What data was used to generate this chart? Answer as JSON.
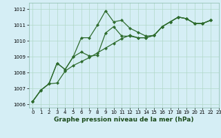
{
  "title": "Graphe pression niveau de la mer (hPa)",
  "bg_color": "#d5eef5",
  "grid_color": "#b0d8c8",
  "line_color": "#2d6b2d",
  "xlim": [
    -0.5,
    23
  ],
  "ylim": [
    1005.8,
    1012.4
  ],
  "yticks": [
    1006,
    1007,
    1008,
    1009,
    1010,
    1011,
    1012
  ],
  "xticks": [
    0,
    1,
    2,
    3,
    4,
    5,
    6,
    7,
    8,
    9,
    10,
    11,
    12,
    13,
    14,
    15,
    16,
    17,
    18,
    19,
    20,
    21,
    22,
    23
  ],
  "series": [
    {
      "x": [
        0,
        1,
        2,
        3,
        4,
        5,
        6,
        7,
        8,
        9,
        10,
        11,
        12,
        13,
        14,
        15,
        16,
        17,
        18,
        19,
        20,
        21,
        22
      ],
      "y": [
        1006.2,
        1006.9,
        1007.3,
        1008.6,
        1008.2,
        1009.0,
        1010.2,
        1010.2,
        1011.0,
        1011.9,
        1011.2,
        1011.3,
        1010.8,
        1010.55,
        1010.3,
        1010.35,
        1010.9,
        1011.2,
        1011.5,
        1011.4,
        1011.1,
        1011.1,
        1011.3
      ]
    },
    {
      "x": [
        0,
        1,
        2,
        3,
        4,
        5,
        6,
        7,
        8,
        9,
        10,
        11,
        12,
        13,
        14,
        15,
        16,
        17,
        18,
        19,
        20,
        21,
        22
      ],
      "y": [
        1006.2,
        1006.9,
        1007.3,
        1008.6,
        1008.2,
        1009.0,
        1009.3,
        1009.05,
        1009.1,
        1010.5,
        1010.9,
        1010.3,
        1010.3,
        1010.2,
        1010.2,
        1010.35,
        1010.9,
        1011.2,
        1011.5,
        1011.4,
        1011.1,
        1011.1,
        1011.3
      ]
    },
    {
      "x": [
        0,
        1,
        2,
        3,
        4,
        5,
        6,
        7,
        8,
        9,
        10,
        11,
        12,
        13,
        14,
        15,
        16,
        17,
        18,
        19,
        20,
        21,
        22
      ],
      "y": [
        1006.2,
        1006.9,
        1007.3,
        1007.35,
        1008.1,
        1008.45,
        1008.7,
        1008.95,
        1009.25,
        1009.55,
        1009.85,
        1010.15,
        1010.35,
        1010.2,
        1010.2,
        1010.35,
        1010.9,
        1011.2,
        1011.5,
        1011.4,
        1011.1,
        1011.1,
        1011.3
      ]
    }
  ],
  "marker": "D",
  "markersize": 2.2,
  "linewidth": 0.9,
  "title_fontsize": 6.5,
  "tick_fontsize": 5.0,
  "xlabel_color": "#1a4a1a"
}
